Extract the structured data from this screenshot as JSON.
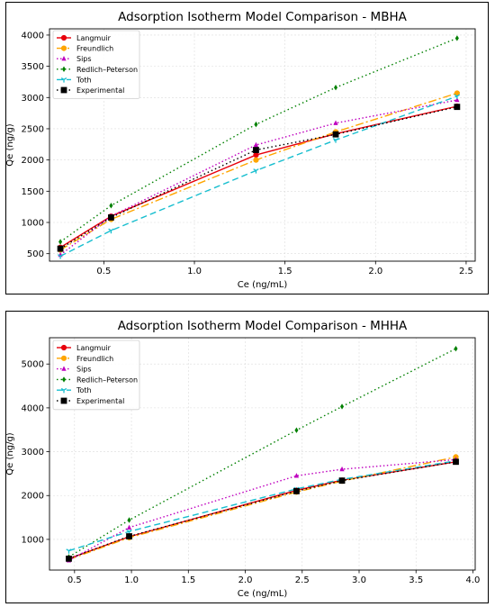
{
  "chart_data": [
    {
      "type": "line",
      "title": "Adsorption Isotherm Model Comparison - MBHA",
      "xlabel": "Ce (ng/mL)",
      "ylabel": "Qe (ng/g)",
      "xlim": [
        0.2,
        2.55
      ],
      "ylim": [
        380,
        4100
      ],
      "xticks": [
        0.5,
        1.0,
        1.5,
        2.0,
        2.5
      ],
      "xtick_labels": [
        "0.5",
        "1.0",
        "1.5",
        "2.0",
        "2.5"
      ],
      "yticks": [
        500,
        1000,
        1500,
        2000,
        2500,
        3000,
        3500,
        4000
      ],
      "ytick_labels": [
        "500",
        "1000",
        "1500",
        "2000",
        "2500",
        "3000",
        "3500",
        "4000"
      ],
      "grid": true,
      "legend_position": "top-left",
      "x": [
        0.26,
        0.54,
        1.34,
        1.78,
        2.45
      ],
      "series": [
        {
          "name": "Langmuir",
          "values": [
            600,
            1100,
            2080,
            2420,
            2860
          ],
          "color": "#e8000b",
          "dash": "",
          "marker": "circle"
        },
        {
          "name": "Freundlich",
          "values": [
            560,
            1050,
            2000,
            2450,
            3070
          ],
          "color": "#ffa500",
          "dash": "9,3,2,3",
          "marker": "circle"
        },
        {
          "name": "Sips",
          "values": [
            480,
            1100,
            2240,
            2590,
            2960
          ],
          "color": "#bf00bf",
          "dash": "1.5,2.5",
          "marker": "triangle"
        },
        {
          "name": "Redlich–Peterson",
          "values": [
            690,
            1270,
            2570,
            3160,
            3950
          ],
          "color": "#008000",
          "dash": "1.5,3",
          "marker": "diamond"
        },
        {
          "name": "Toth",
          "values": [
            460,
            870,
            1830,
            2320,
            3020
          ],
          "color": "#17becf",
          "dash": "7,4",
          "marker": "tri-down"
        },
        {
          "name": "Experimental",
          "values": [
            580,
            1080,
            2160,
            2410,
            2850
          ],
          "color": "#000000",
          "dash": "1.5,3",
          "marker": "square"
        }
      ]
    },
    {
      "type": "line",
      "title": "Adsorption Isotherm Model Comparison - MHHA",
      "xlabel": "Ce (ng/mL)",
      "ylabel": "Qe (ng/g)",
      "xlim": [
        0.28,
        4.02
      ],
      "ylim": [
        300,
        5600
      ],
      "xticks": [
        0.5,
        1.0,
        1.5,
        2.0,
        2.5,
        3.0,
        3.5,
        4.0
      ],
      "xtick_labels": [
        "0.5",
        "1.0",
        "1.5",
        "2.0",
        "2.5",
        "3.0",
        "3.5",
        "4.0"
      ],
      "yticks": [
        1000,
        2000,
        3000,
        4000,
        5000
      ],
      "ytick_labels": [
        "1000",
        "2000",
        "3000",
        "4000",
        "5000"
      ],
      "grid": true,
      "legend_position": "top-left",
      "x": [
        0.45,
        0.98,
        2.45,
        2.85,
        3.85
      ],
      "series": [
        {
          "name": "Langmuir",
          "values": [
            560,
            1060,
            2120,
            2350,
            2770
          ],
          "color": "#e8000b",
          "dash": "",
          "marker": "circle"
        },
        {
          "name": "Freundlich",
          "values": [
            540,
            1040,
            2080,
            2330,
            2880
          ],
          "color": "#ffa500",
          "dash": "9,3,2,3",
          "marker": "circle"
        },
        {
          "name": "Sips",
          "values": [
            520,
            1270,
            2450,
            2600,
            2820
          ],
          "color": "#bf00bf",
          "dash": "1.5,2.5",
          "marker": "triangle"
        },
        {
          "name": "Redlich–Peterson",
          "values": [
            600,
            1440,
            3490,
            4030,
            5350
          ],
          "color": "#008000",
          "dash": "1.5,3",
          "marker": "diamond"
        },
        {
          "name": "Toth",
          "values": [
            740,
            1180,
            2150,
            2370,
            2790
          ],
          "color": "#17becf",
          "dash": "7,4",
          "marker": "tri-down"
        },
        {
          "name": "Experimental",
          "values": [
            560,
            1070,
            2100,
            2340,
            2770
          ],
          "color": "#000000",
          "dash": "1.5,3",
          "marker": "square"
        }
      ]
    }
  ]
}
